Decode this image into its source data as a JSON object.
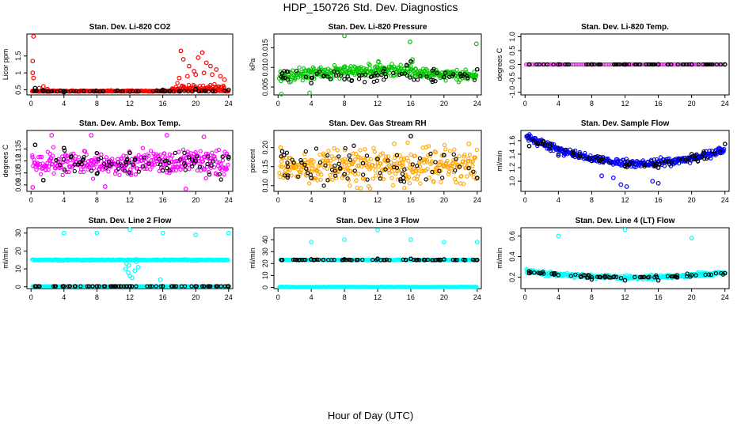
{
  "figure": {
    "title": "HDP_150726  Std. Dev. Diagnostics",
    "xlabel": "Hour of Day (UTC)"
  },
  "chart_data": [
    {
      "type": "scatter",
      "title": "Stan. Dev. Li-820 CO2",
      "ylabel": "Licor ppm",
      "xlim": [
        -0.5,
        24.5
      ],
      "ylim": [
        0.35,
        2.15
      ],
      "xticks": [
        0,
        4,
        8,
        12,
        16,
        20,
        24
      ],
      "yticks": [
        0.5,
        1.0,
        1.5
      ],
      "ytick_labels": [
        "0.5",
        "1",
        "1.5"
      ],
      "base": 0.45,
      "noise": 0.04,
      "primary_color": "#ff0000",
      "secondary_color": "#000000",
      "primary_points": [
        [
          0.3,
          2.08
        ],
        [
          0.2,
          1.35
        ],
        [
          0.2,
          1.0
        ],
        [
          0.3,
          0.85
        ],
        [
          1.0,
          0.55
        ],
        [
          1.5,
          0.6
        ],
        [
          2.0,
          0.52
        ],
        [
          18.2,
          1.65
        ],
        [
          18.5,
          1.4
        ],
        [
          19.2,
          1.2
        ],
        [
          20.3,
          1.45
        ],
        [
          20.8,
          1.6
        ],
        [
          21.3,
          1.3
        ],
        [
          21.8,
          1.2
        ],
        [
          22.5,
          1.1
        ],
        [
          19.8,
          1.05
        ],
        [
          21.0,
          1.0
        ],
        [
          22.0,
          0.95
        ],
        [
          23.0,
          0.9
        ],
        [
          18.0,
          0.85
        ],
        [
          19.0,
          0.9
        ],
        [
          20.0,
          0.95
        ],
        [
          23.5,
          0.8
        ]
      ],
      "secondary_points": [
        [
          0.5,
          0.55
        ],
        [
          4.0,
          0.43
        ],
        [
          8.0,
          0.46
        ],
        [
          12.0,
          0.45
        ],
        [
          16.0,
          0.5
        ],
        [
          20.0,
          0.52
        ],
        [
          24.0,
          0.5
        ]
      ]
    },
    {
      "type": "scatter",
      "title": "Stan. Dev. Li-820 Pressure",
      "ylabel": "kPa",
      "xlim": [
        -0.5,
        24.5
      ],
      "ylim": [
        0.003,
        0.0185
      ],
      "xticks": [
        0,
        4,
        8,
        12,
        16,
        20,
        24
      ],
      "yticks": [
        0.005,
        0.01,
        0.015
      ],
      "ytick_labels": [
        "0.005",
        "0.010",
        "0.015"
      ],
      "base": 0.0075,
      "noise": 0.0017,
      "primary_color": "#00c800",
      "secondary_color": "#000000",
      "primary_points": [
        [
          8.0,
          0.018
        ],
        [
          15.9,
          0.0165
        ],
        [
          23.9,
          0.016
        ],
        [
          0.4,
          0.003
        ],
        [
          3.8,
          0.0035
        ],
        [
          12.1,
          0.0115
        ],
        [
          16.2,
          0.012
        ]
      ],
      "secondary_points": [
        [
          0.5,
          0.0085
        ],
        [
          4.0,
          0.006
        ],
        [
          8.0,
          0.007
        ],
        [
          12.0,
          0.008
        ],
        [
          15.5,
          0.0105
        ],
        [
          16.0,
          0.0115
        ],
        [
          20.0,
          0.0075
        ],
        [
          24.0,
          0.0095
        ]
      ]
    },
    {
      "type": "scatter",
      "title": "Stan. Dev. Li-820 Temp.",
      "ylabel": "degrees C",
      "xlim": [
        -0.5,
        24.5
      ],
      "ylim": [
        -1.1,
        1.1
      ],
      "xticks": [
        0,
        4,
        8,
        12,
        16,
        20,
        24
      ],
      "yticks": [
        -1.0,
        -0.5,
        0.0,
        0.5,
        1.0
      ],
      "ytick_labels": [
        "-1.0",
        "-0.5",
        "0.0",
        "0.5",
        "1.0"
      ],
      "base": 0.0,
      "noise": 0.0,
      "primary_color": "#dc28dc",
      "secondary_color": "#000000",
      "primary_points": [],
      "secondary_points": [
        [
          0.5,
          0.0
        ],
        [
          4.0,
          0.0
        ],
        [
          8.0,
          0.0
        ],
        [
          12.0,
          0.0
        ],
        [
          16.0,
          0.0
        ],
        [
          20.0,
          0.0
        ],
        [
          24.0,
          0.0
        ]
      ]
    },
    {
      "type": "scatter",
      "title": "Stan. Dev. Amb. Box Temp.",
      "ylabel": "degrees C",
      "xlim": [
        -0.5,
        24.5
      ],
      "ylim": [
        0.082,
        0.158
      ],
      "xticks": [
        0,
        4,
        8,
        12,
        16,
        20,
        24
      ],
      "yticks": [
        0.09,
        0.105,
        0.12,
        0.135
      ],
      "ytick_labels": [
        "0.09",
        "0.105",
        "0.12",
        "0.135"
      ],
      "base": 0.117,
      "noise": 0.014,
      "primary_color": "#ff00ff",
      "secondary_color": "#000000",
      "primary_points": [
        [
          2.5,
          0.152
        ],
        [
          7.3,
          0.152
        ],
        [
          16.5,
          0.152
        ],
        [
          21.0,
          0.15
        ],
        [
          0.2,
          0.087
        ],
        [
          9.0,
          0.088
        ],
        [
          18.8,
          0.085
        ]
      ],
      "secondary_points": [
        [
          0.5,
          0.14
        ],
        [
          1.5,
          0.096
        ],
        [
          4.0,
          0.136
        ],
        [
          8.0,
          0.104
        ],
        [
          12.0,
          0.13
        ],
        [
          16.0,
          0.108
        ],
        [
          20.0,
          0.12
        ],
        [
          24.0,
          0.125
        ]
      ]
    },
    {
      "type": "scatter",
      "title": "Stan. Dev. Gas Stream RH",
      "ylabel": "percent",
      "xlim": [
        -0.5,
        24.5
      ],
      "ylim": [
        0.085,
        0.245
      ],
      "xticks": [
        0,
        4,
        8,
        12,
        16,
        20,
        24
      ],
      "yticks": [
        0.1,
        0.15,
        0.2
      ],
      "ytick_labels": [
        "0.10",
        "0.15",
        "0.20"
      ],
      "base": 0.15,
      "noise": 0.042,
      "primary_color": "#ffa500",
      "secondary_color": "#000000",
      "primary_points": [
        [
          0.3,
          0.2
        ],
        [
          23.0,
          0.21
        ],
        [
          14.0,
          0.21
        ]
      ],
      "secondary_points": [
        [
          0.5,
          0.19
        ],
        [
          4.0,
          0.12
        ],
        [
          8.0,
          0.13
        ],
        [
          12.0,
          0.17
        ],
        [
          16.0,
          0.23
        ],
        [
          20.0,
          0.18
        ],
        [
          24.0,
          0.12
        ]
      ]
    },
    {
      "type": "scatter",
      "title": "Stan. Dev. Sample Flow",
      "ylabel": "ml/min",
      "xlim": [
        -0.5,
        24.5
      ],
      "ylim": [
        0.85,
        1.75
      ],
      "xticks": [
        0,
        4,
        8,
        12,
        16,
        20,
        24
      ],
      "yticks": [
        1.0,
        1.2,
        1.4,
        1.6
      ],
      "ytick_labels": [
        "1.0",
        "1.2",
        "1.4",
        "1.6"
      ],
      "base": 1.4,
      "noise": 0.06,
      "primary_color": "#0000ff",
      "secondary_color": "#000000",
      "primary_points": [
        [
          11.5,
          0.95
        ],
        [
          12.2,
          0.92
        ],
        [
          15.3,
          1.0
        ],
        [
          16.0,
          0.97
        ],
        [
          10.6,
          1.05
        ],
        [
          9.2,
          1.08
        ]
      ],
      "secondary_points": [
        [
          0.5,
          1.52
        ],
        [
          4.0,
          1.38
        ],
        [
          8.0,
          1.3
        ],
        [
          12.0,
          1.22
        ],
        [
          16.0,
          1.2
        ],
        [
          20.0,
          1.4
        ],
        [
          24.0,
          1.55
        ]
      ]
    },
    {
      "type": "scatter",
      "title": "Stan. Dev. Line 2 Flow",
      "ylabel": "ml/min",
      "xlim": [
        -0.5,
        24.5
      ],
      "ylim": [
        -1,
        33
      ],
      "xticks": [
        0,
        4,
        8,
        12,
        16,
        20,
        24
      ],
      "yticks": [
        0,
        10,
        20,
        30
      ],
      "ytick_labels": [
        "0",
        "10",
        "20",
        "30"
      ],
      "base": 15,
      "noise": 0.3,
      "primary_color": "#00ffff",
      "secondary_color": "#000000",
      "primary_points": [
        [
          4.0,
          30
        ],
        [
          8.0,
          30
        ],
        [
          12.0,
          32
        ],
        [
          16.0,
          30
        ],
        [
          20.0,
          29
        ],
        [
          24.0,
          30
        ],
        [
          11.5,
          10
        ],
        [
          11.8,
          8
        ],
        [
          12.0,
          6
        ],
        [
          12.3,
          5
        ],
        [
          11.9,
          12
        ],
        [
          12.6,
          9
        ],
        [
          13.0,
          11
        ],
        [
          12.8,
          14
        ],
        [
          15.7,
          4
        ],
        [
          11.6,
          13
        ]
      ],
      "secondary_points": [
        [
          0.5,
          0.3
        ],
        [
          4.0,
          0.3
        ],
        [
          8.0,
          0.3
        ],
        [
          12.0,
          0.3
        ],
        [
          16.0,
          0.3
        ],
        [
          20.0,
          0.3
        ],
        [
          24.0,
          0.3
        ]
      ]
    },
    {
      "type": "scatter",
      "title": "Stan. Dev. Line 3 Flow",
      "ylabel": "ml/min",
      "xlim": [
        -0.5,
        24.5
      ],
      "ylim": [
        -1,
        50
      ],
      "xticks": [
        0,
        4,
        8,
        12,
        16,
        20,
        24
      ],
      "yticks": [
        0,
        10,
        20,
        30,
        40
      ],
      "ytick_labels": [
        "0",
        "10",
        "20",
        "30",
        "40"
      ],
      "base": 0.3,
      "noise": 0.2,
      "primary_color": "#00ffff",
      "secondary_color": "#000000",
      "primary_points": [
        [
          4.0,
          38
        ],
        [
          8.0,
          40
        ],
        [
          12.0,
          48
        ],
        [
          16.0,
          40
        ],
        [
          20.0,
          38
        ],
        [
          24.0,
          38
        ]
      ],
      "secondary_points": [
        [
          0.5,
          23
        ],
        [
          4.0,
          23.5
        ],
        [
          8.0,
          23.5
        ],
        [
          12.0,
          24
        ],
        [
          16.0,
          24
        ],
        [
          20.0,
          23.5
        ],
        [
          24.0,
          23
        ]
      ]
    },
    {
      "type": "scatter",
      "title": "Stan. Dev. Line 4 (LT) Flow",
      "ylabel": "ml/min",
      "xlim": [
        -0.5,
        24.5
      ],
      "ylim": [
        0.09,
        0.68
      ],
      "xticks": [
        0,
        4,
        8,
        12,
        16,
        20,
        24
      ],
      "yticks": [
        0.2,
        0.4,
        0.6
      ],
      "ytick_labels": [
        "0.2",
        "0.4",
        "0.6"
      ],
      "base": 0.2,
      "noise": 0.025,
      "primary_color": "#00ffff",
      "secondary_color": "#000000",
      "primary_points": [
        [
          4.0,
          0.6
        ],
        [
          12.0,
          0.66
        ],
        [
          20.0,
          0.58
        ],
        [
          0.3,
          0.27
        ],
        [
          1.0,
          0.26
        ]
      ],
      "secondary_points": [
        [
          0.5,
          0.24
        ],
        [
          4.0,
          0.22
        ],
        [
          8.0,
          0.18
        ],
        [
          12.0,
          0.17
        ],
        [
          16.0,
          0.17
        ],
        [
          20.0,
          0.22
        ],
        [
          24.0,
          0.24
        ]
      ]
    }
  ]
}
